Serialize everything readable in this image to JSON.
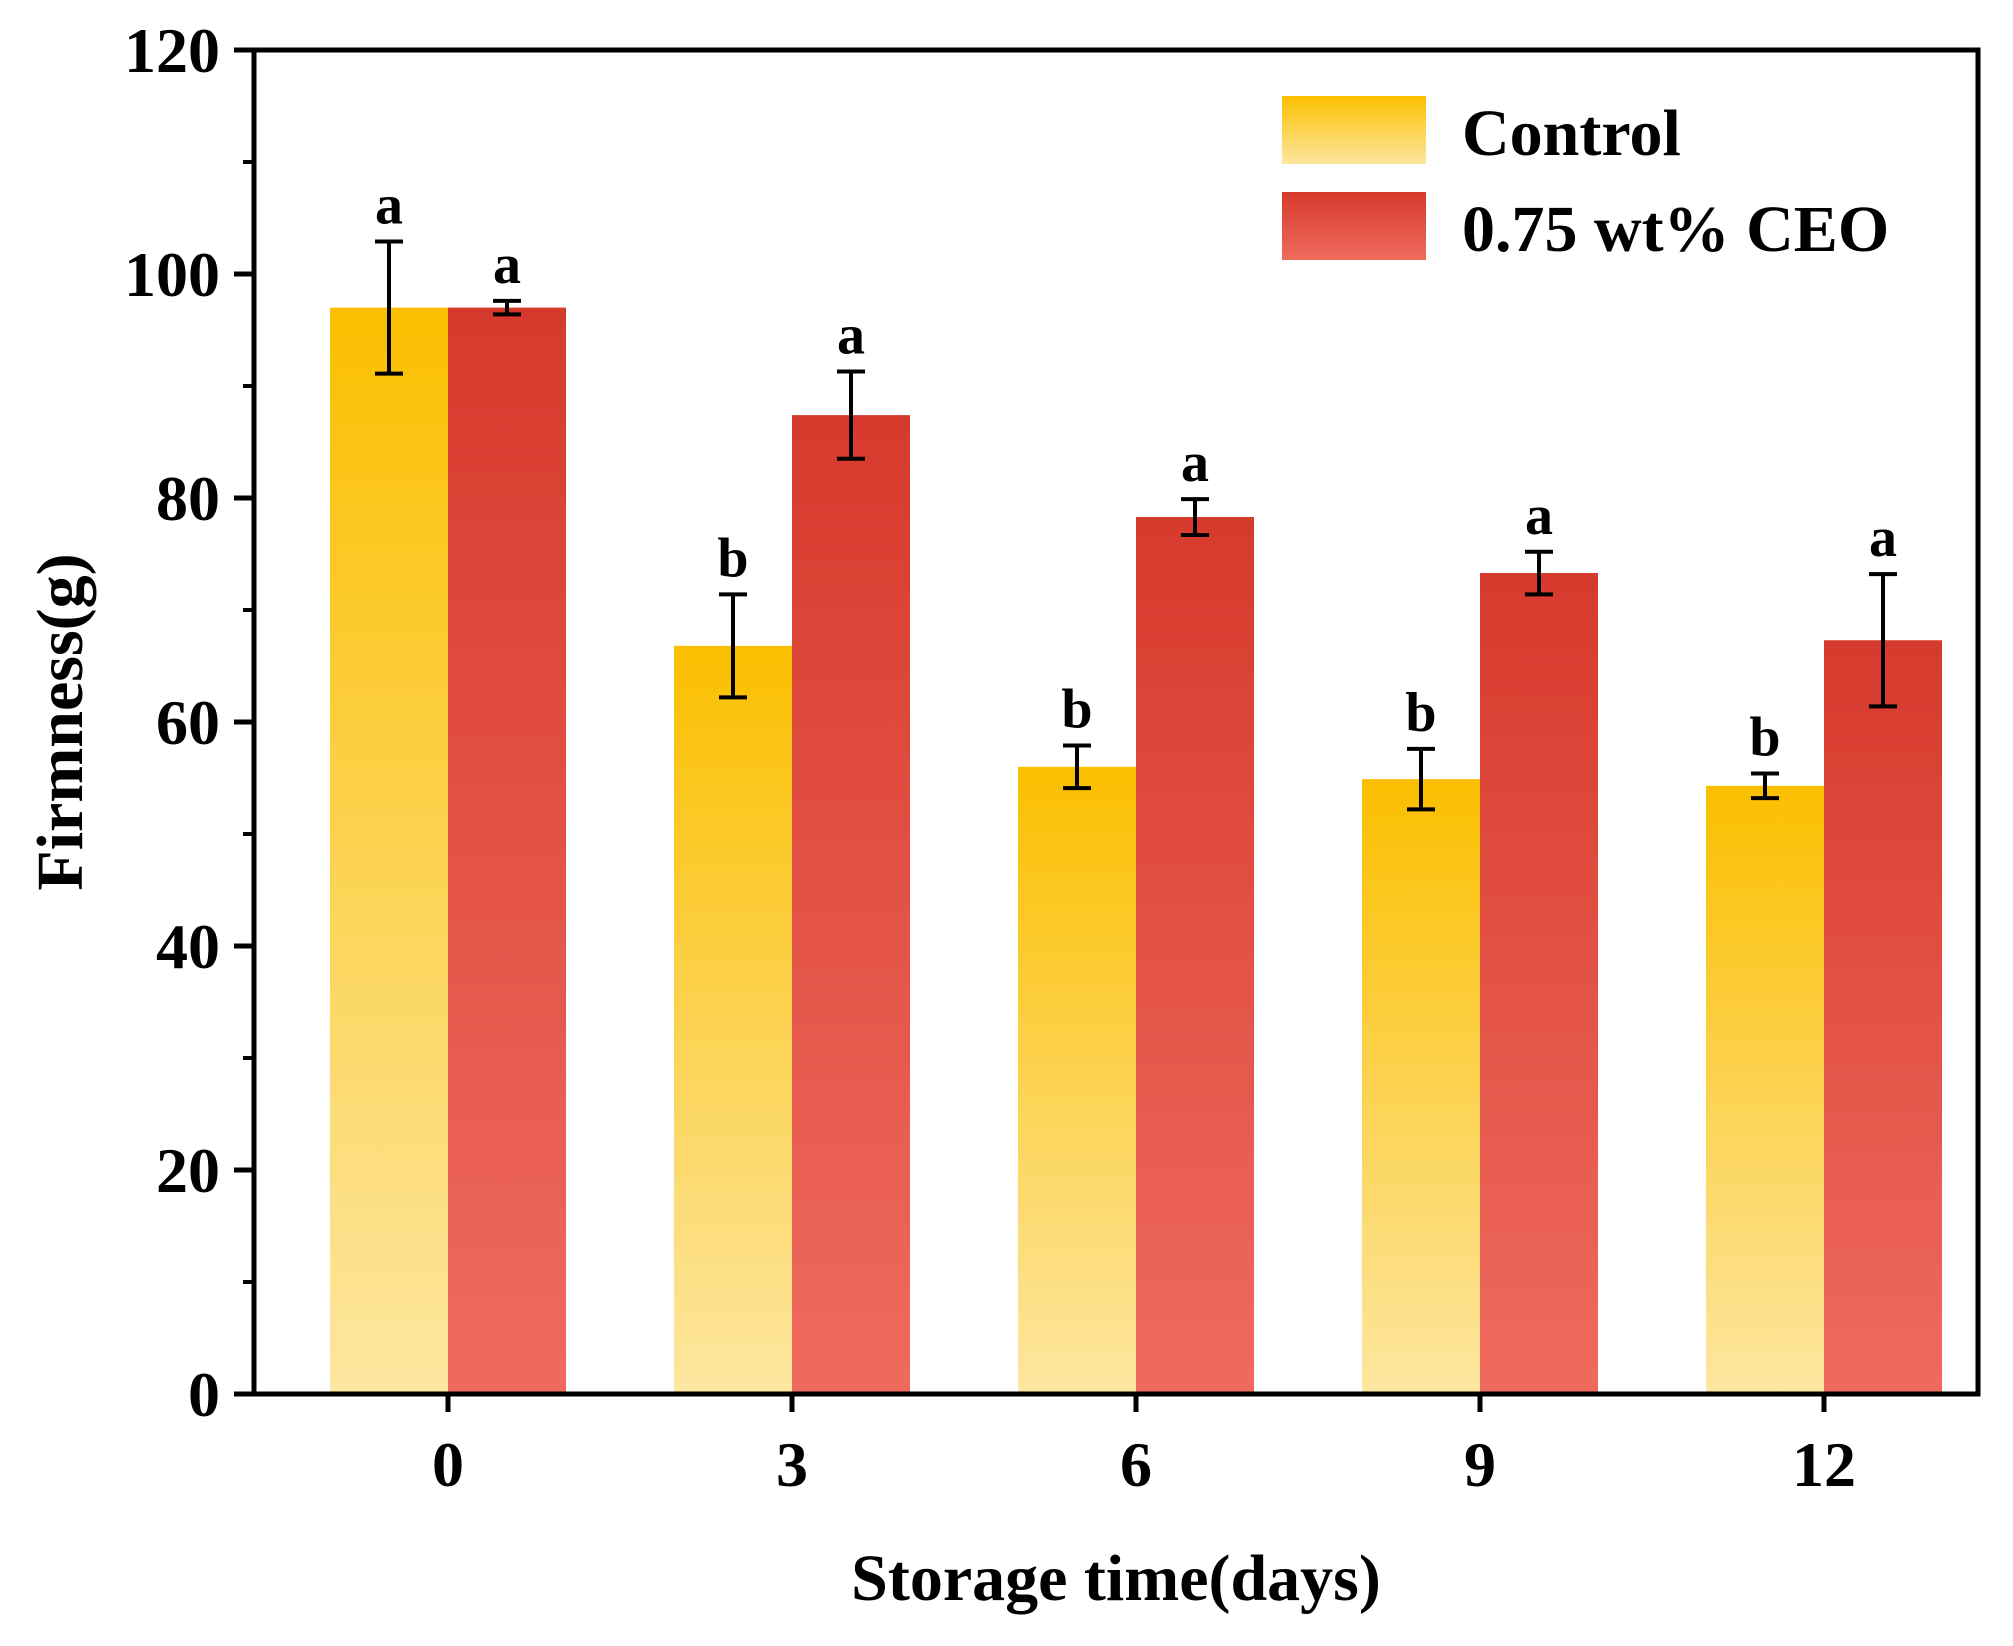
{
  "chart_data": {
    "type": "bar",
    "title": "",
    "xlabel": "Storage time(days)",
    "ylabel": "Firmness(g)",
    "ylim": [
      0,
      120
    ],
    "yticks": [
      0,
      20,
      40,
      60,
      80,
      100,
      120
    ],
    "categories": [
      "0",
      "3",
      "6",
      "9",
      "12"
    ],
    "legend_position": "top-right",
    "series": [
      {
        "name": "Control",
        "color_top": "#fbbf00",
        "color_bottom": "#fde6a0",
        "values": [
          97.0,
          66.8,
          56.0,
          54.9,
          54.3
        ],
        "errors": [
          5.9,
          4.6,
          1.9,
          2.7,
          1.1
        ],
        "significance": [
          "a",
          "b",
          "b",
          "b",
          "b"
        ]
      },
      {
        "name": "0.75 wt% CEO",
        "color_top": "#d63a2c",
        "color_bottom": "#ef6b5e",
        "values": [
          97.0,
          87.4,
          78.3,
          73.3,
          67.3
        ],
        "errors": [
          0.6,
          3.9,
          1.6,
          1.9,
          5.9
        ],
        "significance": [
          "a",
          "a",
          "a",
          "a",
          "a"
        ]
      }
    ]
  }
}
